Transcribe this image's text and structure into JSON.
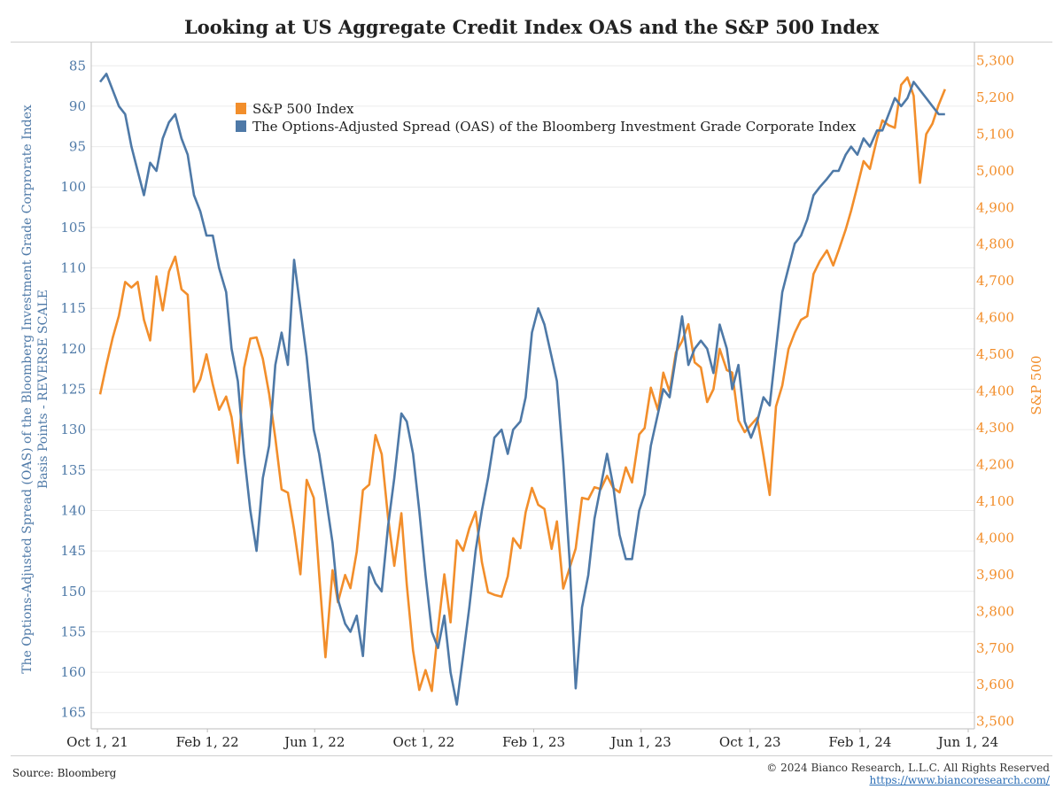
{
  "title": "Looking at US Aggregate Credit Index OAS and the S&P 500 Index",
  "footer": {
    "source": "Source: Bloomberg",
    "copyright": "© 2024 Bianco Research, L.L.C. All Rights Reserved",
    "url": "https://www.biancoresearch.com/"
  },
  "chart_data": {
    "type": "line",
    "title": "Looking at US Aggregate Credit Index OAS and the S&P 500 Index",
    "x_axis": {
      "type": "date",
      "range": [
        "2021-10-01",
        "2024-06-01"
      ],
      "ticks": [
        "2021-10-01",
        "2022-02-01",
        "2022-06-01",
        "2022-10-01",
        "2023-02-01",
        "2023-06-01",
        "2023-10-01",
        "2024-02-01",
        "2024-06-01"
      ],
      "tick_labels": [
        "Oct 1, 21",
        "Feb 1, 22",
        "Jun 1, 22",
        "Oct 1, 22",
        "Feb 1, 23",
        "Jun 1, 23",
        "Oct 1, 23",
        "Feb 1, 24",
        "Jun 1, 24"
      ]
    },
    "y_left": {
      "label_line1": "The Options-Adjusted Spread (OAS) of the Bloomberg Investment Grade Corprorate Index",
      "label_line2": "Basis Points - REVERSE SCALE",
      "range": [
        83,
        167
      ],
      "reversed": true,
      "ticks": [
        85,
        90,
        95,
        100,
        105,
        110,
        115,
        120,
        125,
        130,
        135,
        140,
        145,
        150,
        155,
        160,
        165
      ],
      "color": "#4e79a7"
    },
    "y_right": {
      "label": "S&P 500",
      "range": [
        3480,
        5330
      ],
      "ticks": [
        3500,
        3600,
        3700,
        3800,
        3900,
        4000,
        4100,
        4200,
        4300,
        4400,
        4500,
        4600,
        4700,
        4800,
        4900,
        5000,
        5100,
        5200,
        5300
      ],
      "tick_labels": [
        "3,500",
        "3,600",
        "3,700",
        "3,800",
        "3,900",
        "4,000",
        "4,100",
        "4,200",
        "4,300",
        "4,400",
        "4,500",
        "4,600",
        "4,700",
        "4,800",
        "4,900",
        "5,000",
        "5,100",
        "5,200",
        "5,300"
      ],
      "color": "#f28e2b"
    },
    "grid": true,
    "legend": {
      "placement": "top-left inside"
    },
    "series": [
      {
        "name": "S&P 500 Index",
        "axis": "right",
        "color": "#f28e2b",
        "x": [
          "2021-10-04",
          "2021-10-11",
          "2021-10-18",
          "2021-10-25",
          "2021-11-01",
          "2021-11-08",
          "2021-11-15",
          "2021-11-22",
          "2021-11-29",
          "2021-12-06",
          "2021-12-13",
          "2021-12-20",
          "2021-12-27",
          "2022-01-03",
          "2022-01-10",
          "2022-01-17",
          "2022-01-24",
          "2022-01-31",
          "2022-02-07",
          "2022-02-14",
          "2022-02-22",
          "2022-02-28",
          "2022-03-07",
          "2022-03-14",
          "2022-03-21",
          "2022-03-28",
          "2022-04-04",
          "2022-04-11",
          "2022-04-18",
          "2022-04-25",
          "2022-05-02",
          "2022-05-09",
          "2022-05-16",
          "2022-05-23",
          "2022-05-31",
          "2022-06-06",
          "2022-06-13",
          "2022-06-21",
          "2022-06-27",
          "2022-07-05",
          "2022-07-11",
          "2022-07-18",
          "2022-07-25",
          "2022-08-01",
          "2022-08-08",
          "2022-08-15",
          "2022-08-22",
          "2022-08-29",
          "2022-09-06",
          "2022-09-12",
          "2022-09-19",
          "2022-09-26",
          "2022-10-03",
          "2022-10-10",
          "2022-10-17",
          "2022-10-24",
          "2022-10-31",
          "2022-11-07",
          "2022-11-14",
          "2022-11-21",
          "2022-11-28",
          "2022-12-05",
          "2022-12-12",
          "2022-12-19",
          "2022-12-27",
          "2023-01-03",
          "2023-01-09",
          "2023-01-17",
          "2023-01-23",
          "2023-01-30",
          "2023-02-06",
          "2023-02-13",
          "2023-02-21",
          "2023-02-27",
          "2023-03-06",
          "2023-03-13",
          "2023-03-20",
          "2023-03-27",
          "2023-04-03",
          "2023-04-10",
          "2023-04-17",
          "2023-04-24",
          "2023-05-01",
          "2023-05-08",
          "2023-05-15",
          "2023-05-22",
          "2023-05-30",
          "2023-06-05",
          "2023-06-12",
          "2023-06-20",
          "2023-06-26",
          "2023-07-03",
          "2023-07-10",
          "2023-07-17",
          "2023-07-24",
          "2023-07-31",
          "2023-08-07",
          "2023-08-14",
          "2023-08-21",
          "2023-08-28",
          "2023-09-05",
          "2023-09-11",
          "2023-09-18",
          "2023-09-25",
          "2023-10-02",
          "2023-10-09",
          "2023-10-16",
          "2023-10-23",
          "2023-10-30",
          "2023-11-06",
          "2023-11-13",
          "2023-11-20",
          "2023-11-27",
          "2023-12-04",
          "2023-12-11",
          "2023-12-18",
          "2023-12-26",
          "2024-01-02",
          "2024-01-08",
          "2024-01-16",
          "2024-01-22",
          "2024-01-29",
          "2024-02-05",
          "2024-02-12",
          "2024-02-20",
          "2024-02-26",
          "2024-03-04",
          "2024-03-11",
          "2024-03-18",
          "2024-03-25",
          "2024-04-01",
          "2024-04-08",
          "2024-04-15",
          "2024-04-22",
          "2024-04-29",
          "2024-05-06"
        ],
        "values": [
          4391,
          4471,
          4545,
          4605,
          4697,
          4682,
          4697,
          4594,
          4538,
          4712,
          4620,
          4725,
          4766,
          4677,
          4662,
          4398,
          4432,
          4500,
          4418,
          4349,
          4385,
          4329,
          4204,
          4463,
          4543,
          4546,
          4488,
          4393,
          4272,
          4132,
          4123,
          4023,
          3901,
          4158,
          4109,
          3901,
          3675,
          3912,
          3825,
          3899,
          3863,
          3962,
          4130,
          4145,
          4280,
          4228,
          4057,
          3924,
          4067,
          3873,
          3693,
          3586,
          3640,
          3583,
          3752,
          3901,
          3770,
          3993,
          3965,
          4026,
          4071,
          3934,
          3852,
          3845,
          3840,
          3895,
          3999,
          3972,
          4070,
          4136,
          4090,
          4079,
          3970,
          4045,
          3862,
          3917,
          3971,
          4109,
          4105,
          4138,
          4133,
          4169,
          4136,
          4124,
          4192,
          4151,
          4282,
          4299,
          4409,
          4348,
          4450,
          4398,
          4505,
          4536,
          4582,
          4478,
          4464,
          4370,
          4405,
          4515,
          4457,
          4450,
          4320,
          4288,
          4308,
          4327,
          4224,
          4117,
          4358,
          4415,
          4514,
          4559,
          4594,
          4604,
          4719,
          4754,
          4783,
          4742,
          4783,
          4840,
          4891,
          4958,
          5026,
          5005,
          5088,
          5137,
          5124,
          5117,
          5234,
          5254,
          5204,
          4967,
          5100,
          5128,
          5180,
          5222
        ]
      },
      {
        "name": "The Options-Adjusted Spread (OAS) of the Bloomberg Investment Grade Corporate Index",
        "axis": "left",
        "color": "#4e79a7",
        "x": [
          "2021-10-04",
          "2021-10-11",
          "2021-10-18",
          "2021-10-25",
          "2021-11-01",
          "2021-11-08",
          "2021-11-15",
          "2021-11-22",
          "2021-11-29",
          "2021-12-06",
          "2021-12-13",
          "2021-12-20",
          "2021-12-27",
          "2022-01-03",
          "2022-01-10",
          "2022-01-17",
          "2022-01-24",
          "2022-01-31",
          "2022-02-07",
          "2022-02-14",
          "2022-02-22",
          "2022-02-28",
          "2022-03-07",
          "2022-03-14",
          "2022-03-21",
          "2022-03-28",
          "2022-04-04",
          "2022-04-11",
          "2022-04-18",
          "2022-04-25",
          "2022-05-02",
          "2022-05-09",
          "2022-05-16",
          "2022-05-23",
          "2022-05-31",
          "2022-06-06",
          "2022-06-13",
          "2022-06-21",
          "2022-06-27",
          "2022-07-05",
          "2022-07-11",
          "2022-07-18",
          "2022-07-25",
          "2022-08-01",
          "2022-08-08",
          "2022-08-15",
          "2022-08-22",
          "2022-08-29",
          "2022-09-06",
          "2022-09-12",
          "2022-09-19",
          "2022-09-26",
          "2022-10-03",
          "2022-10-10",
          "2022-10-17",
          "2022-10-24",
          "2022-10-31",
          "2022-11-07",
          "2022-11-14",
          "2022-11-21",
          "2022-11-28",
          "2022-12-05",
          "2022-12-12",
          "2022-12-19",
          "2022-12-27",
          "2023-01-03",
          "2023-01-09",
          "2023-01-17",
          "2023-01-23",
          "2023-01-30",
          "2023-02-06",
          "2023-02-13",
          "2023-02-21",
          "2023-02-27",
          "2023-03-06",
          "2023-03-13",
          "2023-03-20",
          "2023-03-27",
          "2023-04-03",
          "2023-04-10",
          "2023-04-17",
          "2023-04-24",
          "2023-05-01",
          "2023-05-08",
          "2023-05-15",
          "2023-05-22",
          "2023-05-30",
          "2023-06-05",
          "2023-06-12",
          "2023-06-20",
          "2023-06-26",
          "2023-07-03",
          "2023-07-10",
          "2023-07-17",
          "2023-07-24",
          "2023-07-31",
          "2023-08-07",
          "2023-08-14",
          "2023-08-21",
          "2023-08-28",
          "2023-09-05",
          "2023-09-11",
          "2023-09-18",
          "2023-09-25",
          "2023-10-02",
          "2023-10-09",
          "2023-10-16",
          "2023-10-23",
          "2023-10-30",
          "2023-11-06",
          "2023-11-13",
          "2023-11-20",
          "2023-11-27",
          "2023-12-04",
          "2023-12-11",
          "2023-12-18",
          "2023-12-26",
          "2024-01-02",
          "2024-01-08",
          "2024-01-16",
          "2024-01-22",
          "2024-01-29",
          "2024-02-05",
          "2024-02-12",
          "2024-02-20",
          "2024-02-26",
          "2024-03-04",
          "2024-03-11",
          "2024-03-18",
          "2024-03-25",
          "2024-04-01",
          "2024-04-08",
          "2024-04-15",
          "2024-04-22",
          "2024-04-29",
          "2024-05-06"
        ],
        "values": [
          87,
          86,
          88,
          90,
          91,
          95,
          98,
          101,
          97,
          98,
          94,
          92,
          91,
          94,
          96,
          101,
          103,
          106,
          106,
          110,
          113,
          120,
          124,
          133,
          140,
          145,
          136,
          132,
          122,
          118,
          122,
          109,
          115,
          121,
          130,
          133,
          138,
          144,
          151,
          154,
          155,
          153,
          158,
          147,
          149,
          150,
          142,
          136,
          128,
          129,
          133,
          140,
          148,
          155,
          157,
          153,
          160,
          164,
          158,
          152,
          145,
          140,
          136,
          131,
          130,
          133,
          130,
          129,
          126,
          118,
          115,
          117,
          121,
          124,
          134,
          146,
          162,
          152,
          148,
          141,
          137,
          133,
          137,
          143,
          146,
          146,
          140,
          138,
          132,
          128,
          125,
          126,
          121,
          116,
          122,
          120,
          119,
          120,
          123,
          117,
          120,
          125,
          122,
          129,
          131,
          129,
          126,
          127,
          120,
          113,
          110,
          107,
          106,
          104,
          101,
          100,
          99,
          98,
          98,
          96,
          95,
          96,
          94,
          95,
          93,
          93,
          91,
          89,
          90,
          89,
          87,
          88,
          89,
          90,
          91,
          91
        ]
      }
    ]
  }
}
